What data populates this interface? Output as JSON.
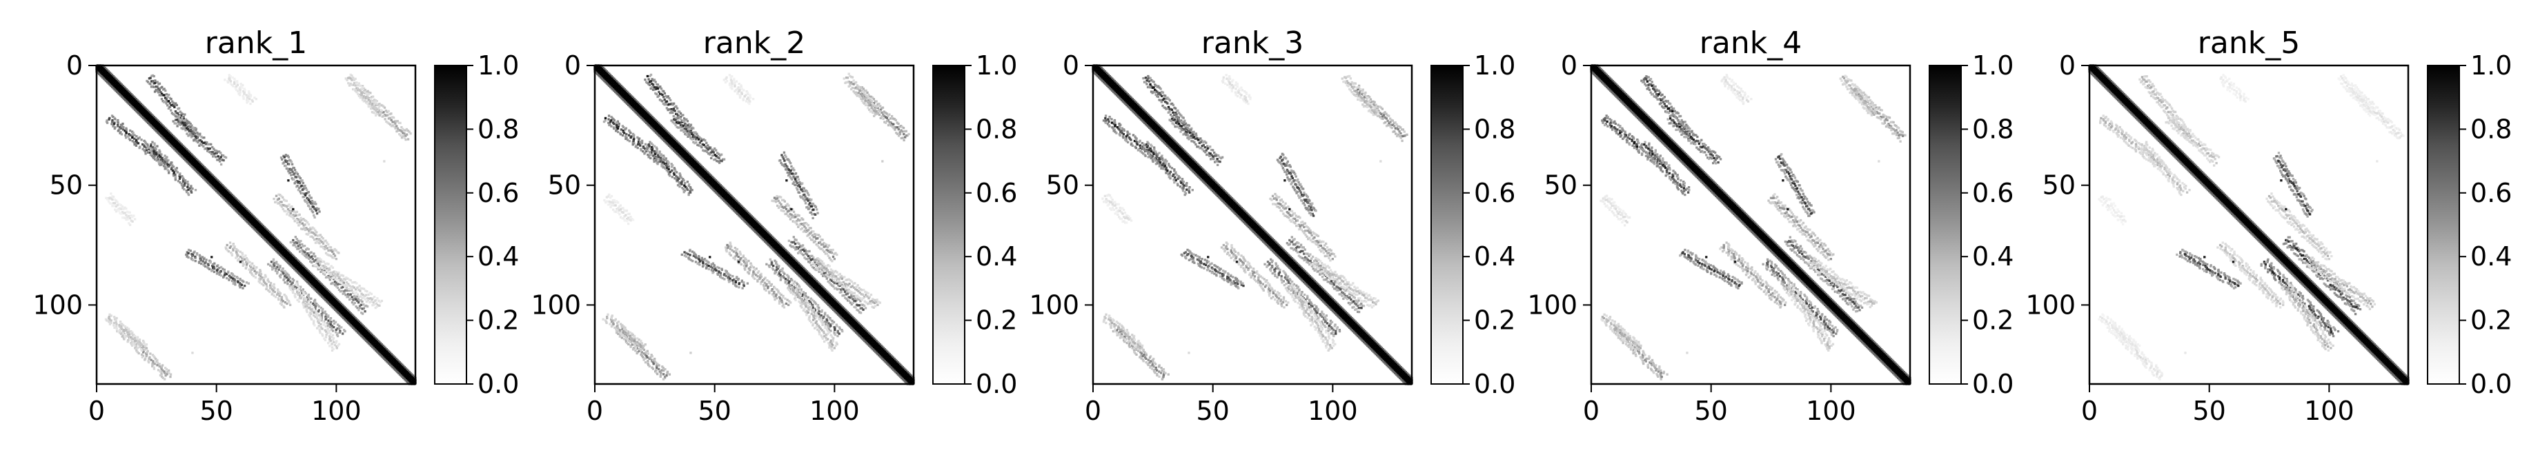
{
  "figure": {
    "background": "#ffffff"
  },
  "chart_data": [
    {
      "type": "heatmap",
      "title": "rank_1",
      "matrix_size": 133,
      "xlim": [
        0,
        133
      ],
      "ylim": [
        133,
        0
      ],
      "xticks": [
        0,
        50,
        100
      ],
      "yticks": [
        0,
        50,
        100
      ],
      "colorbar": {
        "range": [
          0.0,
          1.0
        ],
        "ticks": [
          "0.0",
          "0.2",
          "0.4",
          "0.6",
          "0.8",
          "1.0"
        ],
        "colormap": "Greys"
      },
      "main_diagonal": {
        "value": 1.0,
        "width": 2.5
      },
      "contact_bands": [
        {
          "start": [
            5,
            22
          ],
          "end": [
            30,
            42
          ],
          "value": 0.95
        },
        {
          "start": [
            22,
            33
          ],
          "end": [
            40,
            53
          ],
          "value": 0.9
        },
        {
          "start": [
            10,
            110
          ],
          "end": [
            30,
            130
          ],
          "value": 0.45
        },
        {
          "start": [
            5,
            105
          ],
          "end": [
            20,
            118
          ],
          "value": 0.3
        },
        {
          "start": [
            55,
            75
          ],
          "end": [
            80,
            100
          ],
          "value": 0.4
        },
        {
          "start": [
            73,
            82
          ],
          "end": [
            102,
            112
          ],
          "value": 0.7
        },
        {
          "start": [
            38,
            78
          ],
          "end": [
            62,
            92
          ],
          "value": 0.85
        },
        {
          "start": [
            82,
            92
          ],
          "end": [
            100,
            118
          ],
          "value": 0.25
        },
        {
          "start": [
            55,
            5
          ],
          "end": [
            65,
            15
          ],
          "value": 0.15
        }
      ],
      "isolated_points": [
        {
          "xy": [
            48,
            80
          ],
          "value": 0.9
        },
        {
          "xy": [
            60,
            82
          ],
          "value": 0.9
        },
        {
          "xy": [
            40,
            120
          ],
          "value": 0.15
        }
      ]
    },
    {
      "type": "heatmap",
      "title": "rank_2",
      "matrix_size": 133,
      "xlim": [
        0,
        133
      ],
      "ylim": [
        133,
        0
      ],
      "xticks": [
        0,
        50,
        100
      ],
      "yticks": [
        0,
        50,
        100
      ],
      "colorbar": {
        "range": [
          0.0,
          1.0
        ],
        "ticks": [
          "0.0",
          "0.2",
          "0.4",
          "0.6",
          "0.8",
          "1.0"
        ],
        "colormap": "Greys"
      },
      "main_diagonal": {
        "value": 1.0,
        "width": 2.5
      },
      "contact_bands": [
        {
          "start": [
            5,
            22
          ],
          "end": [
            30,
            42
          ],
          "value": 0.95
        },
        {
          "start": [
            22,
            33
          ],
          "end": [
            40,
            53
          ],
          "value": 0.9
        },
        {
          "start": [
            10,
            110
          ],
          "end": [
            30,
            130
          ],
          "value": 0.6
        },
        {
          "start": [
            5,
            105
          ],
          "end": [
            20,
            118
          ],
          "value": 0.4
        },
        {
          "start": [
            55,
            75
          ],
          "end": [
            80,
            100
          ],
          "value": 0.5
        },
        {
          "start": [
            73,
            82
          ],
          "end": [
            102,
            112
          ],
          "value": 0.75
        },
        {
          "start": [
            38,
            78
          ],
          "end": [
            62,
            92
          ],
          "value": 0.85
        },
        {
          "start": [
            82,
            92
          ],
          "end": [
            100,
            118
          ],
          "value": 0.35
        },
        {
          "start": [
            55,
            5
          ],
          "end": [
            65,
            15
          ],
          "value": 0.15
        }
      ],
      "isolated_points": [
        {
          "xy": [
            48,
            80
          ],
          "value": 0.9
        },
        {
          "xy": [
            60,
            82
          ],
          "value": 0.9
        },
        {
          "xy": [
            40,
            120
          ],
          "value": 0.2
        }
      ]
    },
    {
      "type": "heatmap",
      "title": "rank_3",
      "matrix_size": 133,
      "xlim": [
        0,
        133
      ],
      "ylim": [
        133,
        0
      ],
      "xticks": [
        0,
        50,
        100
      ],
      "yticks": [
        0,
        50,
        100
      ],
      "colorbar": {
        "range": [
          0.0,
          1.0
        ],
        "ticks": [
          "0.0",
          "0.2",
          "0.4",
          "0.6",
          "0.8",
          "1.0"
        ],
        "colormap": "Greys"
      },
      "main_diagonal": {
        "value": 1.0,
        "width": 2.5
      },
      "contact_bands": [
        {
          "start": [
            5,
            22
          ],
          "end": [
            30,
            42
          ],
          "value": 0.95
        },
        {
          "start": [
            22,
            33
          ],
          "end": [
            40,
            53
          ],
          "value": 0.9
        },
        {
          "start": [
            10,
            110
          ],
          "end": [
            30,
            130
          ],
          "value": 0.55
        },
        {
          "start": [
            5,
            105
          ],
          "end": [
            20,
            118
          ],
          "value": 0.35
        },
        {
          "start": [
            55,
            75
          ],
          "end": [
            80,
            100
          ],
          "value": 0.45
        },
        {
          "start": [
            73,
            82
          ],
          "end": [
            102,
            112
          ],
          "value": 0.75
        },
        {
          "start": [
            38,
            78
          ],
          "end": [
            62,
            92
          ],
          "value": 0.85
        },
        {
          "start": [
            82,
            92
          ],
          "end": [
            100,
            118
          ],
          "value": 0.3
        },
        {
          "start": [
            55,
            5
          ],
          "end": [
            65,
            15
          ],
          "value": 0.15
        }
      ],
      "isolated_points": [
        {
          "xy": [
            48,
            80
          ],
          "value": 0.9
        },
        {
          "xy": [
            60,
            82
          ],
          "value": 0.9
        },
        {
          "xy": [
            40,
            120
          ],
          "value": 0.15
        }
      ]
    },
    {
      "type": "heatmap",
      "title": "rank_4",
      "matrix_size": 133,
      "xlim": [
        0,
        133
      ],
      "ylim": [
        133,
        0
      ],
      "xticks": [
        0,
        50,
        100
      ],
      "yticks": [
        0,
        50,
        100
      ],
      "colorbar": {
        "range": [
          0.0,
          1.0
        ],
        "ticks": [
          "0.0",
          "0.2",
          "0.4",
          "0.6",
          "0.8",
          "1.0"
        ],
        "colormap": "Greys"
      },
      "main_diagonal": {
        "value": 1.0,
        "width": 2.5
      },
      "contact_bands": [
        {
          "start": [
            5,
            22
          ],
          "end": [
            30,
            42
          ],
          "value": 0.95
        },
        {
          "start": [
            22,
            33
          ],
          "end": [
            40,
            53
          ],
          "value": 0.9
        },
        {
          "start": [
            10,
            110
          ],
          "end": [
            30,
            130
          ],
          "value": 0.5
        },
        {
          "start": [
            5,
            105
          ],
          "end": [
            20,
            118
          ],
          "value": 0.35
        },
        {
          "start": [
            55,
            75
          ],
          "end": [
            80,
            100
          ],
          "value": 0.45
        },
        {
          "start": [
            73,
            82
          ],
          "end": [
            102,
            112
          ],
          "value": 0.75
        },
        {
          "start": [
            38,
            78
          ],
          "end": [
            62,
            92
          ],
          "value": 0.85
        },
        {
          "start": [
            82,
            92
          ],
          "end": [
            100,
            118
          ],
          "value": 0.3
        },
        {
          "start": [
            55,
            5
          ],
          "end": [
            65,
            15
          ],
          "value": 0.15
        }
      ],
      "isolated_points": [
        {
          "xy": [
            48,
            80
          ],
          "value": 0.9
        },
        {
          "xy": [
            60,
            82
          ],
          "value": 0.9
        },
        {
          "xy": [
            40,
            120
          ],
          "value": 0.15
        }
      ]
    },
    {
      "type": "heatmap",
      "title": "rank_5",
      "matrix_size": 133,
      "xlim": [
        0,
        133
      ],
      "ylim": [
        133,
        0
      ],
      "xticks": [
        0,
        50,
        100
      ],
      "yticks": [
        0,
        50,
        100
      ],
      "colorbar": {
        "range": [
          0.0,
          1.0
        ],
        "ticks": [
          "0.0",
          "0.2",
          "0.4",
          "0.6",
          "0.8",
          "1.0"
        ],
        "colormap": "Greys"
      },
      "main_diagonal": {
        "value": 1.0,
        "width": 2.5
      },
      "contact_bands": [
        {
          "start": [
            5,
            22
          ],
          "end": [
            30,
            42
          ],
          "value": 0.35
        },
        {
          "start": [
            22,
            33
          ],
          "end": [
            40,
            53
          ],
          "value": 0.3
        },
        {
          "start": [
            10,
            110
          ],
          "end": [
            30,
            130
          ],
          "value": 0.15
        },
        {
          "start": [
            5,
            105
          ],
          "end": [
            20,
            118
          ],
          "value": 0.12
        },
        {
          "start": [
            55,
            75
          ],
          "end": [
            80,
            100
          ],
          "value": 0.3
        },
        {
          "start": [
            73,
            82
          ],
          "end": [
            102,
            112
          ],
          "value": 0.9
        },
        {
          "start": [
            38,
            78
          ],
          "end": [
            62,
            92
          ],
          "value": 0.85
        },
        {
          "start": [
            82,
            92
          ],
          "end": [
            100,
            118
          ],
          "value": 0.35
        },
        {
          "start": [
            55,
            5
          ],
          "end": [
            65,
            15
          ],
          "value": 0.1
        }
      ],
      "isolated_points": [
        {
          "xy": [
            48,
            80
          ],
          "value": 0.9
        },
        {
          "xy": [
            60,
            82
          ],
          "value": 0.9
        },
        {
          "xy": [
            40,
            120
          ],
          "value": 0.1
        }
      ]
    }
  ]
}
